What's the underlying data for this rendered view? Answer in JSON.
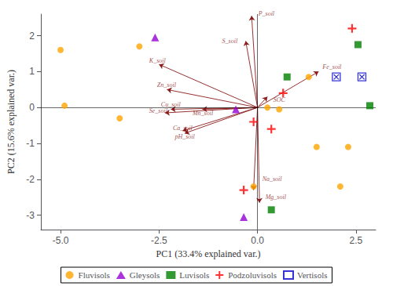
{
  "chart_data": {
    "type": "scatter",
    "xlabel": "PC1 (33.4% explained var.)",
    "ylabel": "PC2 (15.6% explained var.)",
    "xlim": [
      -5.5,
      3.0
    ],
    "ylim": [
      -3.4,
      2.6
    ],
    "xticks": [
      {
        "value": -5.0,
        "label": "-5.0"
      },
      -2.5,
      {
        "value": 0.0,
        "label": "0.0"
      },
      2.5
    ],
    "yticks": [
      -3,
      -2,
      -1,
      0,
      1,
      2
    ],
    "grid": false,
    "legend": "bottom",
    "series": [
      {
        "name": "Fluvisols",
        "color": "#FFA500",
        "marker": "circle",
        "values": [
          [
            -5.0,
            1.6
          ],
          [
            -4.9,
            0.05
          ],
          [
            -3.5,
            -0.3
          ],
          [
            -3.0,
            1.7
          ],
          [
            0.25,
            0.0
          ],
          [
            0.55,
            -0.05
          ],
          [
            1.3,
            0.85
          ],
          [
            1.5,
            -1.1
          ],
          [
            2.1,
            -2.2
          ],
          [
            2.3,
            -1.1
          ],
          [
            -0.1,
            -2.2
          ]
        ]
      },
      {
        "name": "Gleysols",
        "color": "#9400D3",
        "marker": "triangle",
        "values": [
          [
            -2.6,
            1.95
          ],
          [
            -0.55,
            -0.05
          ],
          [
            -0.35,
            -3.05
          ]
        ]
      },
      {
        "name": "Luvisols",
        "color": "#008000",
        "marker": "square",
        "values": [
          [
            2.55,
            1.75
          ],
          [
            0.75,
            0.85
          ],
          [
            2.85,
            0.05
          ],
          [
            0.35,
            -2.85
          ]
        ]
      },
      {
        "name": "Podzoluvisols",
        "color": "#FF0000",
        "marker": "plus",
        "values": [
          [
            2.4,
            2.2
          ],
          [
            0.65,
            0.4
          ],
          [
            -0.1,
            -0.4
          ],
          [
            -0.35,
            -2.3
          ],
          [
            0.35,
            -0.6
          ]
        ]
      },
      {
        "name": "Vertisols",
        "color": "#0000CD",
        "marker": "boxed_x",
        "values": [
          [
            2.0,
            0.85
          ],
          [
            2.65,
            0.85
          ]
        ]
      }
    ],
    "arrows": {
      "color": "#8B1A1A",
      "items": [
        {
          "start": [
            0,
            0
          ],
          "end": [
            -2.5,
            1.2
          ],
          "label": "K_soil",
          "label_x": -2.75,
          "label_y": 1.3
        },
        {
          "start": [
            0,
            0
          ],
          "end": [
            -2.3,
            0.5
          ],
          "label": "Zn_soil",
          "label_x": -2.55,
          "label_y": 0.62
        },
        {
          "start": [
            0,
            0
          ],
          "end": [
            -2.2,
            -0.05
          ],
          "label": "Cu_soil",
          "label_x": -2.45,
          "label_y": 0.07
        },
        {
          "start": [
            0,
            0
          ],
          "end": [
            -2.35,
            -0.15
          ],
          "label": "Se_soil",
          "label_x": -2.75,
          "label_y": -0.1
        },
        {
          "start": [
            0,
            0
          ],
          "end": [
            -1.9,
            -0.65
          ],
          "label": "Ca_soil",
          "label_x": -2.15,
          "label_y": -0.58
        },
        {
          "start": [
            0,
            0
          ],
          "end": [
            -1.85,
            -0.72
          ],
          "label": "pH_soil",
          "label_x": -2.1,
          "label_y": -0.82
        },
        {
          "start": [
            0,
            0
          ],
          "end": [
            -1.4,
            -0.05
          ],
          "label": "Mn_soil",
          "label_x": -1.65,
          "label_y": -0.15
        },
        {
          "start": [
            0,
            0
          ],
          "end": [
            -0.1,
            -2.3
          ],
          "label": "Na_soil",
          "label_x": 0.12,
          "label_y": -2.0
        },
        {
          "start": [
            0,
            0
          ],
          "end": [
            0.05,
            -2.65
          ],
          "label": "Mg_soil",
          "label_x": 0.2,
          "label_y": -2.5
        },
        {
          "start": [
            0,
            0
          ],
          "end": [
            -0.15,
            2.55
          ],
          "label": "P_soil",
          "label_x": 0.02,
          "label_y": 2.62
        },
        {
          "start": [
            0,
            0
          ],
          "end": [
            -0.3,
            1.85
          ],
          "label": "S_soil",
          "label_x": -0.9,
          "label_y": 1.85
        },
        {
          "start": [
            0,
            0
          ],
          "end": [
            0.25,
            0.3
          ],
          "label": "SOC",
          "label_x": 0.4,
          "label_y": 0.22
        },
        {
          "start": [
            0,
            0
          ],
          "end": [
            1.55,
            1.0
          ],
          "label": "Fe_soil",
          "label_x": 1.65,
          "label_y": 1.12
        }
      ]
    }
  }
}
